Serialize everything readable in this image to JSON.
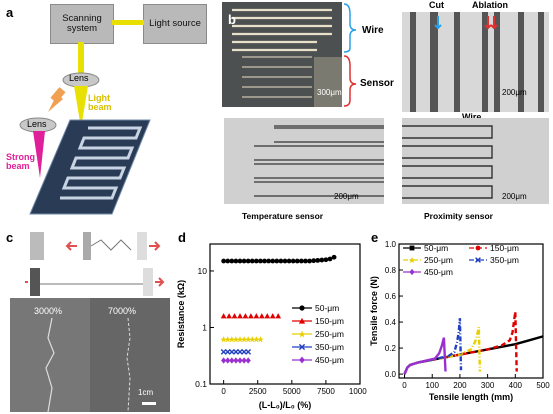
{
  "panel_a": {
    "letter": "a",
    "scanning_system": "Scanning system",
    "light_source": "Light source",
    "lens_top": "Lens",
    "light_beam": "Light beam",
    "lens_bottom": "Lens",
    "strong_beam": "Strong beam",
    "colors": {
      "light_beam": "#e8e000",
      "strong_beam": "#e0209a",
      "arrow": "#f0a050"
    }
  },
  "panel_b": {
    "letter": "b",
    "wire": "Wire",
    "sensor": "Sensor",
    "scale1": "300μm",
    "cut": "Cut",
    "ablation": "Ablation",
    "scale2": "200μm",
    "wire2": "Wire",
    "scale3": "200μm",
    "temperature_sensor": "Temperature sensor",
    "scale4": "200μm",
    "proximity_sensor": "Proximity sensor"
  },
  "panel_c": {
    "letter": "c",
    "strain1": "3000%",
    "strain2": "7000%",
    "scale": "1cm"
  },
  "panel_d": {
    "letter": "d",
    "ylabel": "Resistance (kΩ)",
    "xlabel": "(L-L₀)/L₀ (%)",
    "ytick_labels": [
      "0.1",
      "1",
      "10"
    ],
    "xtick_labels": [
      "0",
      "2500",
      "5000",
      "7500",
      "10000"
    ]
  },
  "panel_e": {
    "letter": "e",
    "ylabel": "Tensile force (N)",
    "xlabel": "Tensile length (mm)",
    "ytick_labels": [
      "0.0",
      "0.2",
      "0.4",
      "0.6",
      "0.8",
      "1.0"
    ],
    "xtick_labels": [
      "0",
      "100",
      "200",
      "300",
      "400",
      "500"
    ]
  },
  "chart_data": [
    {
      "type": "scatter",
      "panel": "d",
      "xlabel": "(L-L₀)/L₀ (%)",
      "ylabel": "Resistance (kΩ)",
      "xlim": [
        -1000,
        10000
      ],
      "ylim": [
        0.1,
        30
      ],
      "yscale": "log",
      "legend": "right",
      "series": [
        {
          "name": "50-μm",
          "color": "#000000",
          "marker": "circle",
          "x": [
            0,
            300,
            600,
            900,
            1200,
            1500,
            1800,
            2100,
            2400,
            2700,
            3000,
            3300,
            3600,
            3900,
            4200,
            4500,
            4800,
            5100,
            5400,
            5700,
            6000,
            6300,
            6600,
            6900,
            7200,
            7500,
            7800,
            8100
          ],
          "y": [
            15,
            15,
            15,
            15,
            15,
            15,
            15,
            15,
            15,
            15,
            15,
            15,
            15,
            15,
            15,
            15,
            15,
            15,
            15,
            15,
            15,
            15,
            15.2,
            15.4,
            15.6,
            15.8,
            16.3,
            17.5
          ]
        },
        {
          "name": "150-μm",
          "color": "#e00000",
          "marker": "triangle",
          "x": [
            0,
            400,
            800,
            1200,
            1600,
            2000,
            2400,
            2800,
            3200,
            3600,
            4000
          ],
          "y": [
            1.6,
            1.6,
            1.6,
            1.6,
            1.6,
            1.6,
            1.6,
            1.6,
            1.6,
            1.6,
            1.6
          ]
        },
        {
          "name": "250-μm",
          "color": "#e8d000",
          "marker": "star",
          "x": [
            0,
            300,
            600,
            900,
            1200,
            1500,
            1800,
            2100,
            2400,
            2700
          ],
          "y": [
            0.62,
            0.62,
            0.62,
            0.62,
            0.62,
            0.62,
            0.62,
            0.62,
            0.62,
            0.62
          ]
        },
        {
          "name": "350-μm",
          "color": "#2040c0",
          "marker": "x",
          "x": [
            0,
            300,
            600,
            900,
            1200,
            1500,
            1800
          ],
          "y": [
            0.37,
            0.37,
            0.37,
            0.37,
            0.37,
            0.37,
            0.37
          ]
        },
        {
          "name": "450-μm",
          "color": "#9a30d0",
          "marker": "diamond",
          "x": [
            0,
            300,
            600,
            900,
            1200,
            1500,
            1800
          ],
          "y": [
            0.26,
            0.26,
            0.26,
            0.26,
            0.26,
            0.26,
            0.26
          ]
        }
      ]
    },
    {
      "type": "line",
      "panel": "e",
      "xlabel": "Tensile length (mm)",
      "ylabel": "Tensile force (N)",
      "xlim": [
        -20,
        500
      ],
      "ylim": [
        -0.03,
        1.0
      ],
      "legend": "top-left",
      "series": [
        {
          "name": "50-μm",
          "color": "#000000",
          "style": "solid",
          "marker": "square",
          "x": [
            0,
            10,
            20,
            50,
            100,
            150,
            200,
            250,
            300,
            350,
            400,
            450,
            500
          ],
          "y": [
            0,
            0.05,
            0.07,
            0.09,
            0.11,
            0.13,
            0.15,
            0.17,
            0.19,
            0.21,
            0.23,
            0.26,
            0.29
          ]
        },
        {
          "name": "150-μm",
          "color": "#e00000",
          "style": "dashed",
          "marker": "circle",
          "x": [
            0,
            10,
            20,
            50,
            100,
            150,
            200,
            250,
            300,
            350,
            380,
            390,
            395,
            400,
            405
          ],
          "y": [
            0,
            0.05,
            0.07,
            0.09,
            0.11,
            0.13,
            0.15,
            0.17,
            0.19,
            0.22,
            0.26,
            0.32,
            0.4,
            0.48,
            0.02
          ]
        },
        {
          "name": "250-μm",
          "color": "#e8d000",
          "style": "dashdot",
          "marker": "star",
          "x": [
            0,
            10,
            20,
            50,
            100,
            150,
            200,
            240,
            255,
            262,
            268,
            272
          ],
          "y": [
            0,
            0.05,
            0.07,
            0.09,
            0.11,
            0.13,
            0.15,
            0.19,
            0.25,
            0.3,
            0.36,
            0.02
          ]
        },
        {
          "name": "350-μm",
          "color": "#2040c0",
          "style": "dashdot",
          "marker": "x",
          "x": [
            0,
            10,
            20,
            50,
            100,
            140,
            160,
            180,
            190,
            196,
            200,
            204
          ],
          "y": [
            0,
            0.05,
            0.07,
            0.09,
            0.11,
            0.13,
            0.14,
            0.17,
            0.25,
            0.33,
            0.43,
            0.03
          ]
        },
        {
          "name": "450-μm",
          "color": "#9a30d0",
          "style": "solid",
          "marker": "diamond",
          "x": [
            0,
            10,
            20,
            50,
            90,
            110,
            125,
            135,
            142,
            148
          ],
          "y": [
            0,
            0.05,
            0.07,
            0.09,
            0.11,
            0.12,
            0.16,
            0.22,
            0.28,
            0.02
          ]
        }
      ]
    }
  ]
}
